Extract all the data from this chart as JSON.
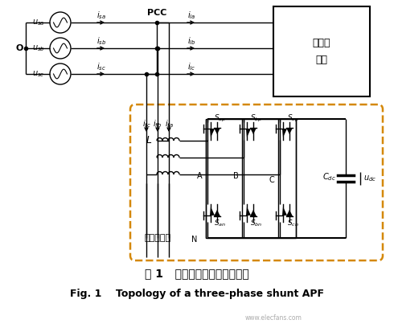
{
  "title_cn": "图 1   三相三线有源滤波器结构",
  "title_en": "Fig. 1    Topology of a three-phase shunt APF",
  "watermark": "www.elecfans.com",
  "bg_color": "#ffffff",
  "dashed_box_color": "#D4880A",
  "nonlinear_label": "非线性\n负载",
  "apf_label": "有源滤波器",
  "O_label": "O",
  "PCC_label": "PCC",
  "L_label": "L",
  "A_label": "A",
  "B_label": "B",
  "C_label": "C",
  "N_label": "N"
}
